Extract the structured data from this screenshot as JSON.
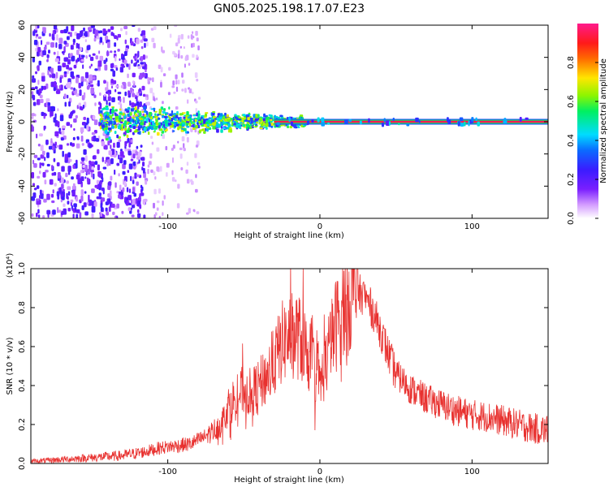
{
  "figure": {
    "title": "GN05.2025.198.17.07.E23"
  },
  "chart_data": [
    {
      "type": "heatmap",
      "title": "GN05.2025.198.17.07.E23",
      "xlabel": "Height of straight line (km)",
      "ylabel": "Frequency (Hz)",
      "xlim": [
        -190,
        150
      ],
      "ylim": [
        -60,
        60
      ],
      "xticks": [
        -100,
        0,
        100
      ],
      "yticks": [
        -60,
        -40,
        -20,
        0,
        20,
        40,
        60
      ],
      "colorbar": {
        "label": "Normalized spectral amplitude",
        "range": [
          0,
          1
        ],
        "ticks": [
          "0.0",
          "0.2",
          "0.4",
          "0.6",
          "0.8"
        ],
        "colormap": "white-purple-blue-cyan-green-yellow-red-magenta"
      },
      "features": [
        {
          "name": "broadband speckle",
          "x_range": [
            -190,
            -115
          ],
          "freq_range": [
            -60,
            60
          ],
          "amplitude": 0.15
        },
        {
          "name": "sparse speckle",
          "x_range": [
            -115,
            -80
          ],
          "freq_range": [
            -60,
            60
          ],
          "amplitude": 0.08
        },
        {
          "name": "narrowing band",
          "x_range": [
            -145,
            -10
          ],
          "freq_range": [
            -12,
            12
          ],
          "amplitude": 0.45
        },
        {
          "name": "carrier line",
          "x_range": [
            -30,
            150
          ],
          "freq_center": 0,
          "amplitude": 0.95
        }
      ]
    },
    {
      "type": "line",
      "xlabel": "Height of straight line (km)",
      "ylabel": "SNR (10 * v/v)",
      "y_multiplier": "(x10⁴)",
      "xlim": [
        -190,
        150
      ],
      "ylim": [
        0,
        1.0
      ],
      "xticks": [
        -100,
        0,
        100
      ],
      "yticks": [
        0.0,
        0.2,
        0.4,
        0.6,
        0.8,
        1.0
      ],
      "series": [
        {
          "color": "#e8312f",
          "x": [
            -190,
            -170,
            -150,
            -130,
            -115,
            -105,
            -95,
            -85,
            -75,
            -65,
            -60,
            -55,
            -50,
            -45,
            -40,
            -35,
            -30,
            -25,
            -20,
            -15,
            -10,
            -5,
            0,
            5,
            10,
            15,
            20,
            25,
            30,
            35,
            40,
            45,
            50,
            60,
            70,
            80,
            90,
            100,
            110,
            120,
            130,
            140,
            150
          ],
          "values": [
            0.01,
            0.02,
            0.03,
            0.04,
            0.06,
            0.08,
            0.09,
            0.1,
            0.14,
            0.2,
            0.3,
            0.34,
            0.38,
            0.36,
            0.4,
            0.45,
            0.52,
            0.62,
            0.65,
            0.66,
            0.6,
            0.52,
            0.4,
            0.55,
            0.7,
            0.8,
            0.86,
            0.88,
            0.85,
            0.78,
            0.68,
            0.56,
            0.46,
            0.38,
            0.33,
            0.3,
            0.27,
            0.25,
            0.24,
            0.22,
            0.2,
            0.18,
            0.17
          ]
        }
      ]
    }
  ]
}
